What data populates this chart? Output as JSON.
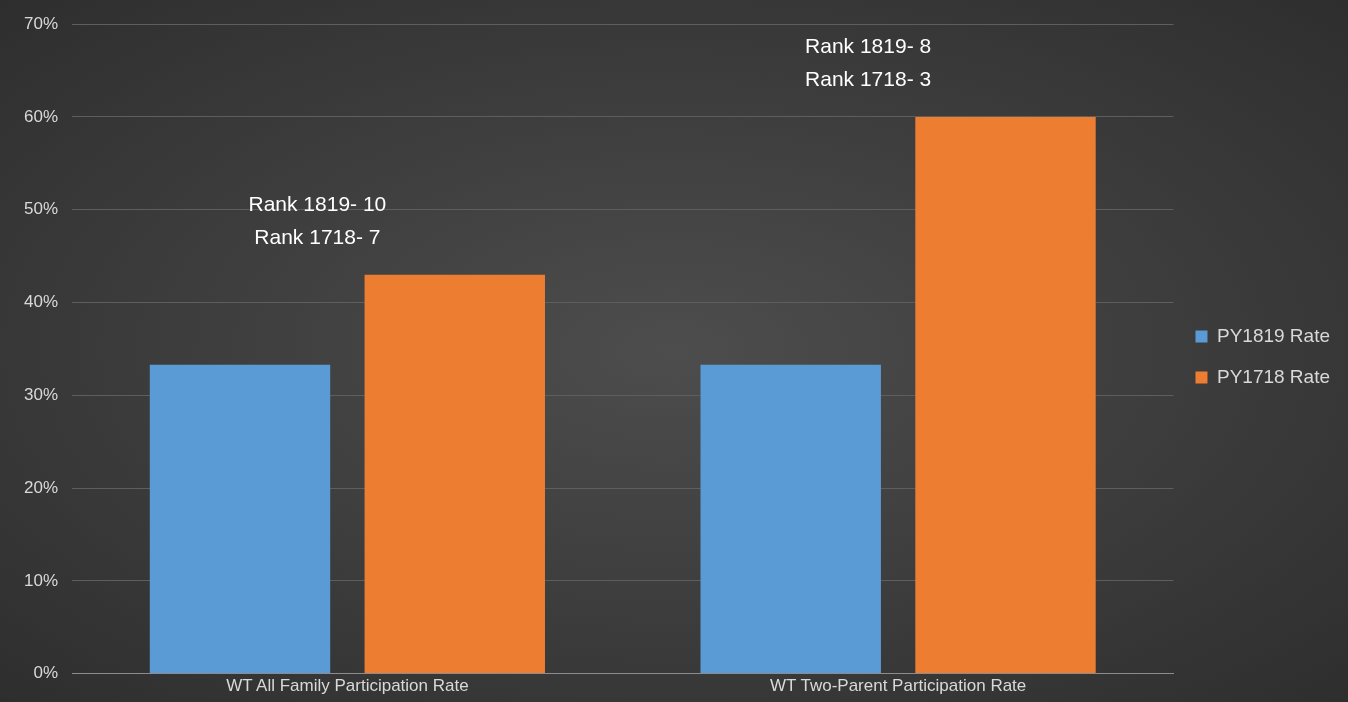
{
  "chart_data": {
    "type": "bar",
    "categories": [
      "WT All Family Participation Rate",
      "WT Two-Parent Participation Rate"
    ],
    "series": [
      {
        "name": "PY1819 Rate",
        "color": "#5b9bd5",
        "values": [
          33.3,
          33.3
        ]
      },
      {
        "name": "PY1718 Rate",
        "color": "#ed7d31",
        "values": [
          43,
          60
        ]
      }
    ],
    "ylim": [
      0,
      70
    ],
    "yticks": [
      {
        "value": 0,
        "label": "0%"
      },
      {
        "value": 10,
        "label": "10%"
      },
      {
        "value": 20,
        "label": "20%"
      },
      {
        "value": 30,
        "label": "30%"
      },
      {
        "value": 40,
        "label": "40%"
      },
      {
        "value": 50,
        "label": "50%"
      },
      {
        "value": 60,
        "label": "60%"
      },
      {
        "value": 70,
        "label": "70%"
      }
    ],
    "grid": "y",
    "legend": "right",
    "annotations": [
      "Rank 1819- 10\nRank 1718- 7",
      "Rank 1819- 8\nRank 1718- 3"
    ]
  }
}
